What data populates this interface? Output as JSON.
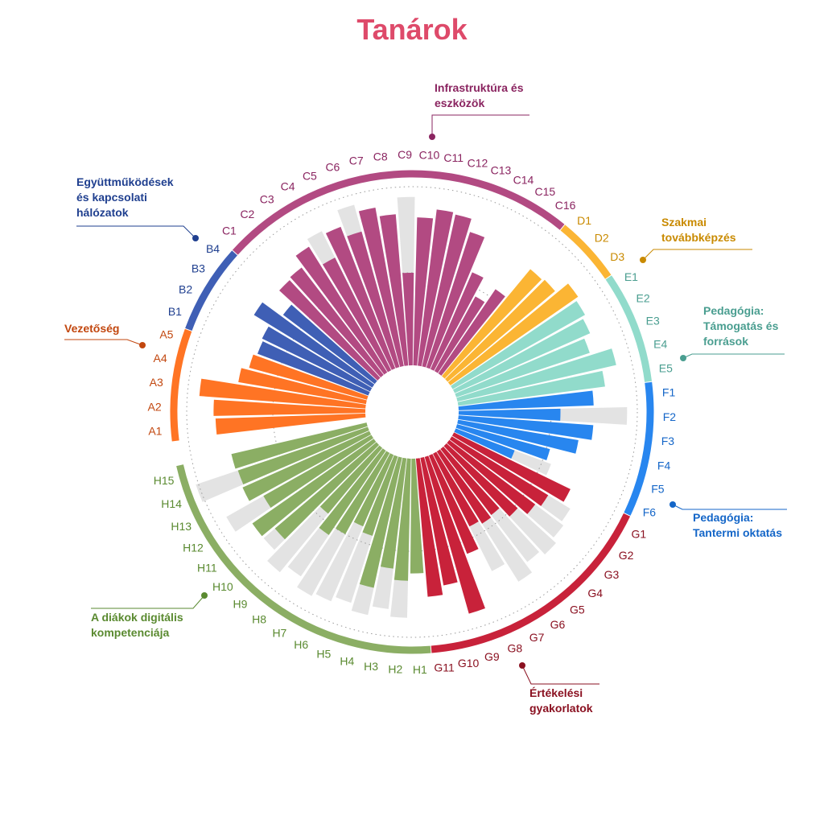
{
  "chart_data": {
    "type": "radial-bar",
    "title": "Tanárok",
    "title_color": "#de4a6a",
    "max_value": 100,
    "background_bar_color": "#e3e3e3",
    "gridline": "dotted",
    "groups": [
      {
        "key": "A",
        "name": "Vezetőség",
        "color": "#ff7424",
        "label_color": "#c2470f",
        "bars": [
          {
            "label": "A1",
            "value": 81,
            "max": 81
          },
          {
            "label": "A2",
            "value": 82,
            "max": 82
          },
          {
            "label": "A3",
            "value": 90,
            "max": 90
          },
          {
            "label": "A4",
            "value": 70,
            "max": 70
          },
          {
            "label": "A5",
            "value": 66,
            "max": 66
          }
        ]
      },
      {
        "key": "B",
        "name": "Együttműködések és kapcsolati hálózatok",
        "color": "#3f5fb5",
        "label_color": "#1f3f8f",
        "bars": [
          {
            "label": "B1",
            "value": 64,
            "max": 64
          },
          {
            "label": "B2",
            "value": 65,
            "max": 65
          },
          {
            "label": "B3",
            "value": 75,
            "max": 75
          },
          {
            "label": "B4",
            "value": 62,
            "max": 62
          }
        ]
      },
      {
        "key": "C",
        "name": "Infrastruktúra és eszközök",
        "color": "#b24a82",
        "label_color": "#8a2460",
        "bars": [
          {
            "label": "C1",
            "value": 72,
            "max": 72
          },
          {
            "label": "C2",
            "value": 73,
            "max": 73
          },
          {
            "label": "C3",
            "value": 80,
            "max": 80
          },
          {
            "label": "C4",
            "value": 68,
            "max": 84
          },
          {
            "label": "C5",
            "value": 82,
            "max": 82
          },
          {
            "label": "C6",
            "value": 76,
            "max": 91
          },
          {
            "label": "C7",
            "value": 87,
            "max": 87
          },
          {
            "label": "C8",
            "value": 82,
            "max": 82
          },
          {
            "label": "C9",
            "value": 50,
            "max": 91
          },
          {
            "label": "C10",
            "value": 80,
            "max": 80
          },
          {
            "label": "C11",
            "value": 85,
            "max": 85
          },
          {
            "label": "C12",
            "value": 84,
            "max": 84
          },
          {
            "label": "C13",
            "value": 77,
            "max": 77
          },
          {
            "label": "C14",
            "value": 57,
            "max": 57
          },
          {
            "label": "C15",
            "value": 46,
            "max": 46
          },
          {
            "label": "C16",
            "value": 55,
            "max": 55
          }
        ]
      },
      {
        "key": "D",
        "name": "Szakmai továbbképzés",
        "color": "#fbb534",
        "label_color": "#c98a00",
        "bars": [
          {
            "label": "D1",
            "value": 75,
            "max": 75
          },
          {
            "label": "D2",
            "value": 76,
            "max": 76
          },
          {
            "label": "D3",
            "value": 84,
            "max": 84
          }
        ]
      },
      {
        "key": "E",
        "name": "Pedagógia: Támogatás és források",
        "color": "#91dbcb",
        "label_color": "#4a9e90",
        "bars": [
          {
            "label": "E1",
            "value": 82,
            "max": 82
          },
          {
            "label": "E2",
            "value": 80,
            "max": 80
          },
          {
            "label": "E3",
            "value": 76,
            "max": 76
          },
          {
            "label": "E4",
            "value": 88,
            "max": 88
          },
          {
            "label": "E5",
            "value": 80,
            "max": 80
          }
        ]
      },
      {
        "key": "F",
        "name": "Pedagógia: Tantermi oktatás",
        "color": "#2886ef",
        "label_color": "#1466c8",
        "bars": [
          {
            "label": "F1",
            "value": 73,
            "max": 73
          },
          {
            "label": "F2",
            "value": 55,
            "max": 91
          },
          {
            "label": "F3",
            "value": 73,
            "max": 73
          },
          {
            "label": "F4",
            "value": 66,
            "max": 66
          },
          {
            "label": "F5",
            "value": 52,
            "max": 52
          },
          {
            "label": "F6",
            "value": 34,
            "max": 55
          }
        ]
      },
      {
        "key": "G",
        "name": "Értékelési gyakorlatok",
        "color": "#c8223a",
        "label_color": "#8a1020",
        "bars": [
          {
            "label": "G1",
            "value": 70,
            "max": 70
          },
          {
            "label": "G2",
            "value": 61,
            "max": 75
          },
          {
            "label": "G3",
            "value": 58,
            "max": 77
          },
          {
            "label": "G4",
            "value": 52,
            "max": 80
          },
          {
            "label": "G5",
            "value": 45,
            "max": 77
          },
          {
            "label": "G6",
            "value": 46,
            "max": 83
          },
          {
            "label": "G7",
            "value": 44,
            "max": 71
          },
          {
            "label": "G8",
            "value": 57,
            "max": 57
          },
          {
            "label": "G9",
            "value": 88,
            "max": 88
          },
          {
            "label": "G10",
            "value": 70,
            "max": 70
          },
          {
            "label": "G11",
            "value": 75,
            "max": 75
          }
        ]
      },
      {
        "key": "H",
        "name": "A diákok digitális kompetenciája",
        "color": "#8bae64",
        "label_color": "#5a8a30",
        "bars": [
          {
            "label": "H1",
            "value": 62,
            "max": 62
          },
          {
            "label": "H2",
            "value": 66,
            "max": 86
          },
          {
            "label": "H3",
            "value": 60,
            "max": 82
          },
          {
            "label": "H4",
            "value": 72,
            "max": 87
          },
          {
            "label": "H5",
            "value": 45,
            "max": 83
          },
          {
            "label": "H6",
            "value": 42,
            "max": 86
          },
          {
            "label": "H7",
            "value": 50,
            "max": 88
          },
          {
            "label": "H8",
            "value": 55,
            "max": 82
          },
          {
            "label": "H9",
            "value": 46,
            "max": 87
          },
          {
            "label": "H10",
            "value": 72,
            "max": 80
          },
          {
            "label": "H11",
            "value": 80,
            "max": 80
          },
          {
            "label": "H12",
            "value": 67,
            "max": 90
          },
          {
            "label": "H13",
            "value": 75,
            "max": 75
          },
          {
            "label": "H14",
            "value": 74,
            "max": 98
          },
          {
            "label": "H15",
            "value": 75,
            "max": 75
          }
        ]
      }
    ]
  }
}
